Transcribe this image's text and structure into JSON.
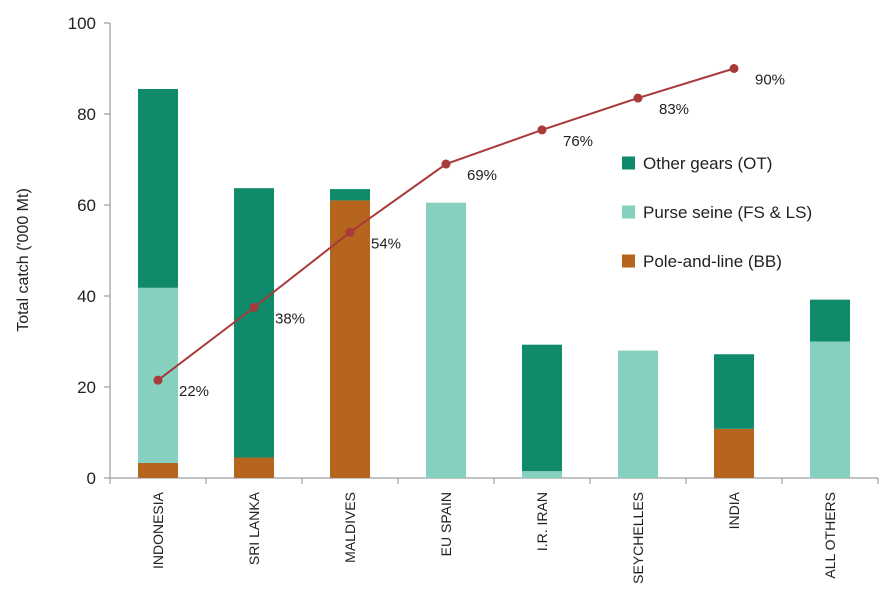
{
  "chart_data": {
    "type": "bar",
    "stacked": true,
    "ylabel": "Total catch ('000 Mt)",
    "xlabel": "",
    "title": "",
    "ylim": [
      0,
      100
    ],
    "yticks": [
      0,
      20,
      40,
      60,
      80,
      100
    ],
    "grid": false,
    "legend_position": "right",
    "categories": [
      "INDONESIA",
      "SRI LANKA",
      "MALDIVES",
      "EU SPAIN",
      "I.R. IRAN",
      "SEYCHELLES",
      "INDIA",
      "ALL OTHERS"
    ],
    "series": [
      {
        "name": "Pole-and-line (BB)",
        "color": "#b5651d",
        "values": [
          3.3,
          4.5,
          61.0,
          0,
          0,
          0,
          10.8,
          0
        ]
      },
      {
        "name": "Purse seine (FS & LS)",
        "color": "#86d0bf",
        "values": [
          38.5,
          0,
          0,
          60.5,
          1.5,
          28.0,
          0,
          30.0
        ]
      },
      {
        "name": "Other gears (OT)",
        "color": "#0f8a6a",
        "values": [
          43.7,
          59.2,
          2.5,
          0,
          27.8,
          0,
          16.4,
          9.2
        ]
      }
    ],
    "line_series": {
      "color": "#a83a3a",
      "values": [
        21.5,
        37.5,
        54,
        69,
        76.5,
        83.5,
        90
      ],
      "labels": [
        "22%",
        "38%",
        "54%",
        "69%",
        "76%",
        "83%",
        "90%"
      ]
    },
    "legend_order": [
      "Other gears (OT)",
      "Purse seine (FS & LS)",
      "Pole-and-line (BB)"
    ]
  }
}
